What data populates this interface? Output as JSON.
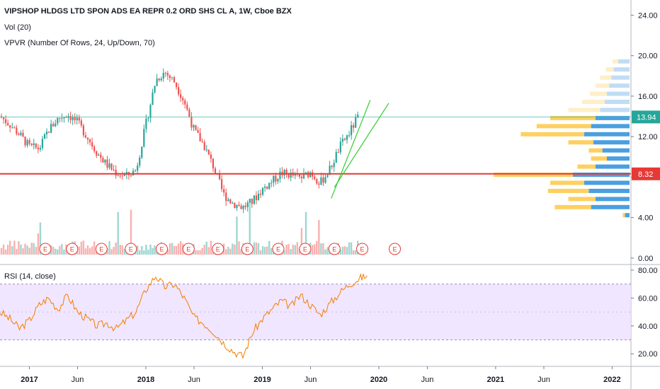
{
  "header": {
    "title": "VIPSHOP HLDGS LTD SPON ADS EA REPR 0.2 ORD SHS CL A, 1W, Cboe BZX",
    "vol_label": "Vol (20)",
    "vpvr_label": "VPVR (Number Of Rows, 24, Up/Down, 70)",
    "rsi_label": "RSI (14, close)"
  },
  "colors": {
    "up": "#26a69a",
    "down": "#ef5350",
    "hline_red": "#e53935",
    "hline_teal": "#4db6ac",
    "trend": "#33cc33",
    "rsi_line": "#f57c00",
    "rsi_band": "#ede0ff",
    "vp_up": "#4a9fe0",
    "vp_down": "#ffd060"
  },
  "chart_data": [
    {
      "type": "candlestick",
      "title": "VIPSHOP HLDGS LTD SPON ADS EA REPR 0.2 ORD SHS CL A, 1W, Cboe BZX",
      "price_axis_ticks": [
        "24.00",
        "20.00",
        "16.00",
        "12.00",
        "8.00",
        "4.00",
        "0.00"
      ],
      "ylim": [
        -0.5,
        25.5
      ],
      "time_axis_ticks": [
        "2017",
        "Jun",
        "2018",
        "Jun",
        "2019",
        "Jun",
        "2020",
        "Jun",
        "2021",
        "Jun",
        "2022"
      ],
      "last_price": "13.94",
      "horizontal_level": "8.32",
      "price_path": [
        [
          "2016-10-01",
          14.0
        ],
        [
          "2016-11-01",
          13.2
        ],
        [
          "2016-12-01",
          12.2
        ],
        [
          "2017-01-01",
          11.0
        ],
        [
          "2017-02-01",
          10.8
        ],
        [
          "2017-03-01",
          12.6
        ],
        [
          "2017-04-01",
          13.8
        ],
        [
          "2017-05-01",
          14.2
        ],
        [
          "2017-06-01",
          13.4
        ],
        [
          "2017-07-01",
          12.0
        ],
        [
          "2017-08-01",
          10.4
        ],
        [
          "2017-09-01",
          9.2
        ],
        [
          "2017-10-01",
          8.4
        ],
        [
          "2017-11-01",
          8.1
        ],
        [
          "2017-12-01",
          8.7
        ],
        [
          "2018-01-01",
          13.2
        ],
        [
          "2018-02-01",
          17.6
        ],
        [
          "2018-03-01",
          18.4
        ],
        [
          "2018-04-01",
          17.4
        ],
        [
          "2018-05-01",
          15.5
        ],
        [
          "2018-06-01",
          12.6
        ],
        [
          "2018-07-01",
          11.2
        ],
        [
          "2018-08-01",
          9.0
        ],
        [
          "2018-09-01",
          6.3
        ],
        [
          "2018-10-01",
          5.4
        ],
        [
          "2018-11-01",
          5.0
        ],
        [
          "2018-12-01",
          5.6
        ],
        [
          "2019-01-01",
          6.8
        ],
        [
          "2019-02-01",
          7.6
        ],
        [
          "2019-03-01",
          8.4
        ],
        [
          "2019-04-01",
          8.2
        ],
        [
          "2019-05-01",
          7.9
        ],
        [
          "2019-06-01",
          8.5
        ],
        [
          "2019-07-01",
          7.4
        ],
        [
          "2019-08-01",
          8.8
        ],
        [
          "2019-09-01",
          11.0
        ],
        [
          "2019-10-01",
          12.4
        ],
        [
          "2019-11-01",
          14.2
        ]
      ],
      "earnings_markers": [
        "2017-02-20",
        "2017-05-15",
        "2017-08-15",
        "2017-11-15",
        "2018-02-20",
        "2018-05-15",
        "2018-08-15",
        "2018-11-15",
        "2019-02-20",
        "2019-05-15",
        "2019-08-15",
        "2019-11-10",
        "2020-02-20"
      ],
      "earnings_label": "E",
      "trendlines": [
        [
          [
            "2019-08-05",
            5.9
          ],
          [
            "2019-12-05",
            15.6
          ]
        ],
        [
          [
            "2019-08-15",
            7.0
          ],
          [
            "2020-02-01",
            15.3
          ]
        ]
      ],
      "volume_profile_rows": [
        {
          "price": 19.4,
          "up": 0.1,
          "down": 0.05
        },
        {
          "price": 18.6,
          "up": 0.14,
          "down": 0.07
        },
        {
          "price": 17.8,
          "up": 0.16,
          "down": 0.1
        },
        {
          "price": 17.0,
          "up": 0.18,
          "down": 0.12
        },
        {
          "price": 16.2,
          "up": 0.2,
          "down": 0.15
        },
        {
          "price": 15.4,
          "up": 0.22,
          "down": 0.2
        },
        {
          "price": 14.6,
          "up": 0.26,
          "down": 0.28
        },
        {
          "price": 13.8,
          "up": 0.3,
          "down": 0.4
        },
        {
          "price": 13.0,
          "up": 0.34,
          "down": 0.48
        },
        {
          "price": 12.2,
          "up": 0.4,
          "down": 0.56
        },
        {
          "price": 11.4,
          "up": 0.32,
          "down": 0.22
        },
        {
          "price": 10.6,
          "up": 0.24,
          "down": 0.12
        },
        {
          "price": 9.8,
          "up": 0.2,
          "down": 0.14
        },
        {
          "price": 9.0,
          "up": 0.3,
          "down": 0.16
        },
        {
          "price": 8.2,
          "up": 0.5,
          "down": 0.7
        },
        {
          "price": 7.4,
          "up": 0.4,
          "down": 0.3
        },
        {
          "price": 6.6,
          "up": 0.36,
          "down": 0.36
        },
        {
          "price": 5.8,
          "up": 0.3,
          "down": 0.24
        },
        {
          "price": 5.0,
          "up": 0.34,
          "down": 0.32
        },
        {
          "price": 4.2,
          "up": 0.04,
          "down": 0.02
        }
      ]
    },
    {
      "type": "line",
      "title": "RSI (14, close)",
      "rsi_axis_ticks": [
        "80.00",
        "60.00",
        "40.00",
        "20.00"
      ],
      "ylim": [
        12,
        83
      ],
      "band": [
        30,
        70
      ],
      "midline": 50,
      "rsi_path": [
        [
          "2016-10-01",
          50
        ],
        [
          "2016-11-01",
          45
        ],
        [
          "2016-12-01",
          38
        ],
        [
          "2017-01-01",
          44
        ],
        [
          "2017-02-01",
          55
        ],
        [
          "2017-03-01",
          60
        ],
        [
          "2017-04-01",
          52
        ],
        [
          "2017-05-01",
          62
        ],
        [
          "2017-06-01",
          50
        ],
        [
          "2017-07-01",
          45
        ],
        [
          "2017-08-01",
          40
        ],
        [
          "2017-09-01",
          42
        ],
        [
          "2017-10-01",
          38
        ],
        [
          "2017-11-01",
          44
        ],
        [
          "2017-12-01",
          50
        ],
        [
          "2018-01-01",
          66
        ],
        [
          "2018-02-01",
          76
        ],
        [
          "2018-03-01",
          68
        ],
        [
          "2018-04-01",
          70
        ],
        [
          "2018-05-01",
          60
        ],
        [
          "2018-06-01",
          46
        ],
        [
          "2018-07-01",
          42
        ],
        [
          "2018-08-01",
          36
        ],
        [
          "2018-09-01",
          28
        ],
        [
          "2018-10-01",
          22
        ],
        [
          "2018-11-01",
          18
        ],
        [
          "2018-12-01",
          35
        ],
        [
          "2019-01-01",
          45
        ],
        [
          "2019-02-01",
          52
        ],
        [
          "2019-03-01",
          58
        ],
        [
          "2019-04-01",
          54
        ],
        [
          "2019-05-01",
          62
        ],
        [
          "2019-06-01",
          55
        ],
        [
          "2019-07-01",
          48
        ],
        [
          "2019-08-01",
          56
        ],
        [
          "2019-09-01",
          64
        ],
        [
          "2019-10-01",
          70
        ],
        [
          "2019-11-01",
          74
        ],
        [
          "2019-11-25",
          76
        ]
      ]
    }
  ]
}
